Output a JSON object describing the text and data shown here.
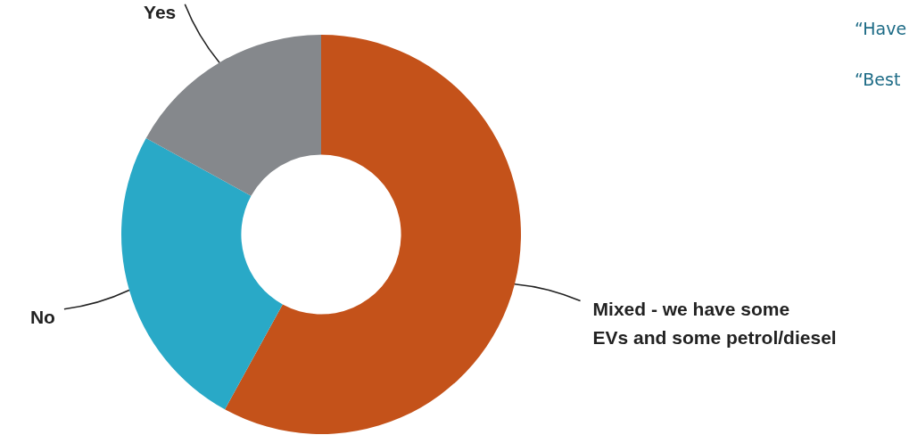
{
  "chart_data": {
    "type": "donut",
    "categories": [
      "Mixed - we have some\nEVs and some petrol/diesel",
      "No",
      "Yes"
    ],
    "values": [
      58,
      25,
      17
    ],
    "colors": [
      "#c4521a",
      "#29a9c7",
      "#85888c"
    ],
    "annotations": [
      "“Have",
      "“Best"
    ]
  }
}
